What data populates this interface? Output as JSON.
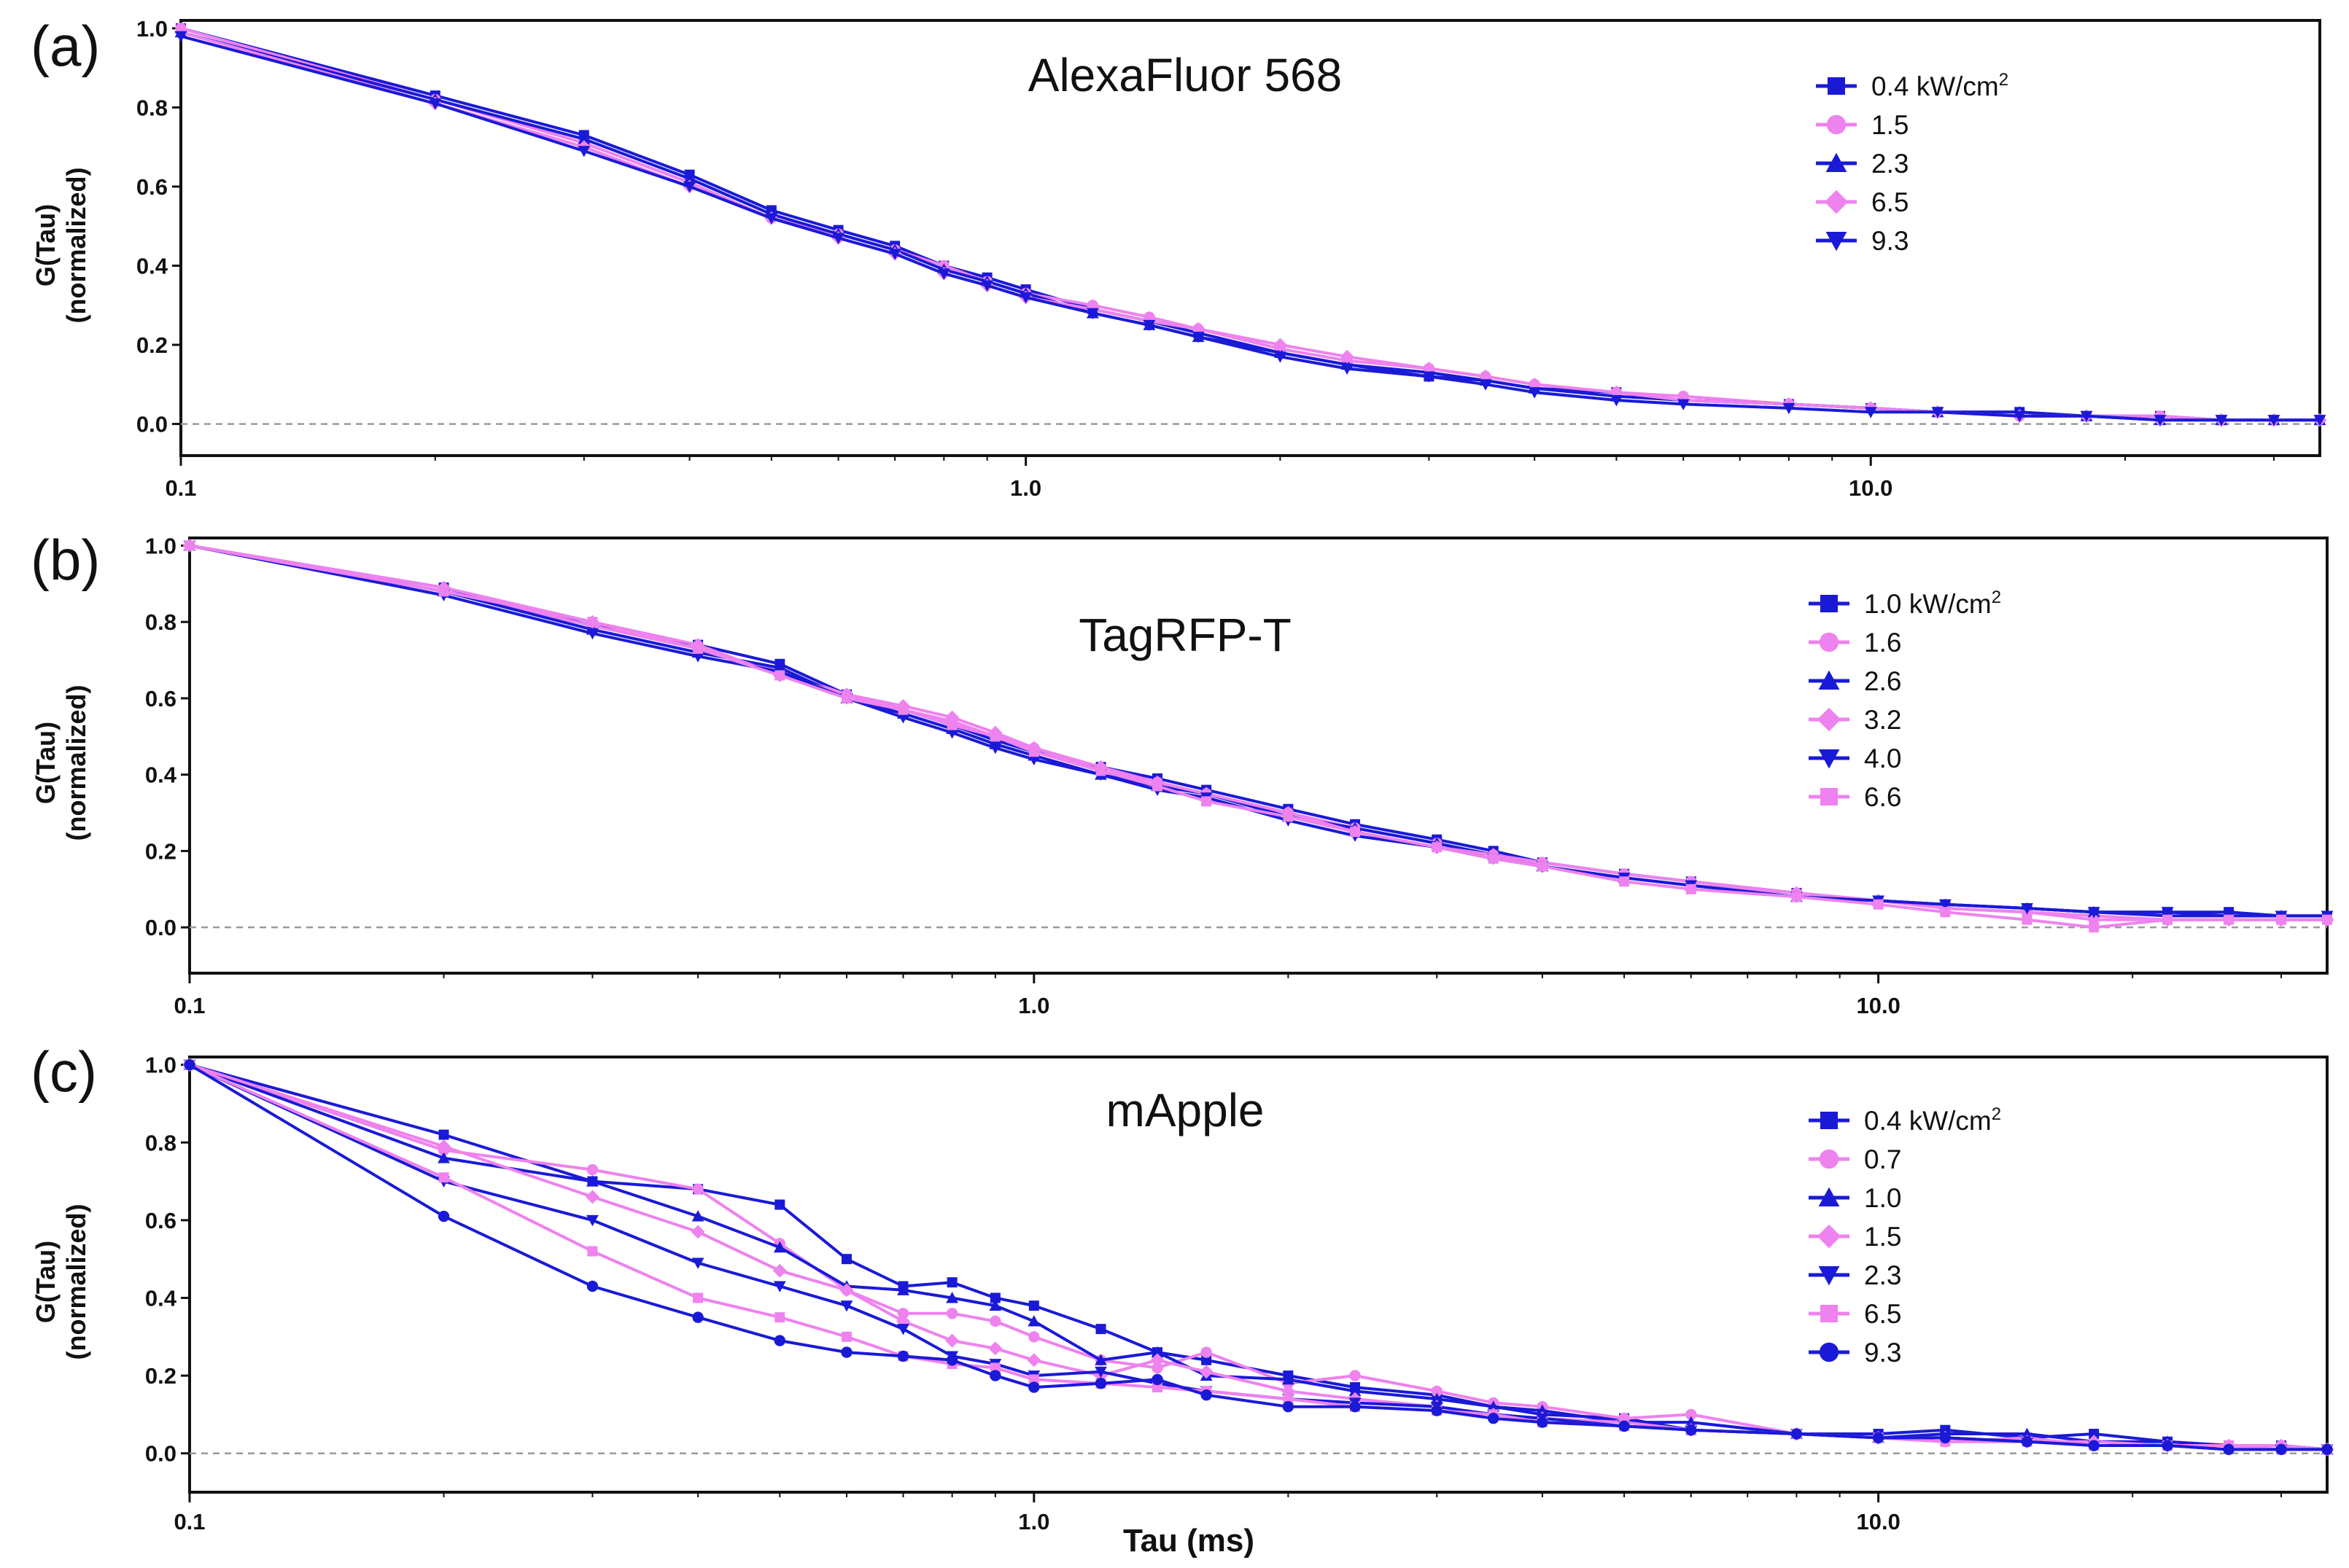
{
  "figure": {
    "shared_xlabel": "Tau (ms)",
    "colors": {
      "blue": "#1a1ad6",
      "pink": "#ee82ee",
      "axis": "#111111",
      "zero_line": "#9a9a9a"
    }
  },
  "chart_data": [
    {
      "type": "line",
      "panel_label": "(a)",
      "title": "AlexaFluor 568",
      "xlabel": "",
      "ylabel": [
        "G(Tau)",
        "(normalized)"
      ],
      "xscale": "log",
      "xlim": [
        0.1,
        34
      ],
      "ylim": [
        -0.08,
        1.02
      ],
      "xticks": [
        0.1,
        1.0,
        10.0
      ],
      "xtick_labels": [
        "0.1",
        "1.0",
        "10.0"
      ],
      "yticks": [
        0.0,
        0.2,
        0.4,
        0.6,
        0.8,
        1.0
      ],
      "ytick_labels": [
        "0.0",
        "0.2",
        "0.4",
        "0.6",
        "0.8",
        "1.0"
      ],
      "legend_position": "top-right",
      "legend_unit": "kW/cm",
      "legend_unit_sup": "2",
      "x": [
        0.1,
        0.2,
        0.3,
        0.4,
        0.5,
        0.6,
        0.7,
        0.8,
        0.9,
        1.0,
        1.2,
        1.4,
        1.6,
        2.0,
        2.4,
        3.0,
        3.5,
        4.0,
        5.0,
        6.0,
        8.0,
        10.0,
        12.0,
        15.0,
        18.0,
        22.0,
        26.0,
        30.0,
        34.0
      ],
      "series": [
        {
          "name": "0.4",
          "color": "#1a1ad6",
          "marker": "square",
          "values": [
            1.0,
            0.83,
            0.73,
            0.63,
            0.54,
            0.49,
            0.45,
            0.4,
            0.37,
            0.34,
            0.29,
            0.26,
            0.23,
            0.18,
            0.15,
            0.12,
            0.11,
            0.09,
            0.08,
            0.06,
            0.05,
            0.04,
            0.03,
            0.03,
            0.02,
            0.02,
            0.01,
            0.01,
            0.01
          ]
        },
        {
          "name": "1.5",
          "color": "#ee82ee",
          "marker": "circle",
          "values": [
            1.0,
            0.82,
            0.71,
            0.61,
            0.52,
            0.48,
            0.44,
            0.4,
            0.36,
            0.33,
            0.3,
            0.27,
            0.24,
            0.19,
            0.16,
            0.14,
            0.12,
            0.1,
            0.08,
            0.07,
            0.05,
            0.04,
            0.03,
            0.02,
            0.02,
            0.02,
            0.01,
            0.01,
            0.01
          ]
        },
        {
          "name": "2.3",
          "color": "#1a1ad6",
          "marker": "triangle-up",
          "values": [
            0.99,
            0.82,
            0.72,
            0.62,
            0.53,
            0.48,
            0.44,
            0.39,
            0.36,
            0.33,
            0.28,
            0.25,
            0.22,
            0.18,
            0.15,
            0.13,
            0.11,
            0.09,
            0.07,
            0.06,
            0.05,
            0.04,
            0.03,
            0.03,
            0.02,
            0.01,
            0.01,
            0.01,
            0.01
          ]
        },
        {
          "name": "6.5",
          "color": "#ee82ee",
          "marker": "diamond",
          "values": [
            0.99,
            0.81,
            0.7,
            0.6,
            0.52,
            0.47,
            0.43,
            0.38,
            0.35,
            0.32,
            0.29,
            0.26,
            0.24,
            0.2,
            0.17,
            0.14,
            0.12,
            0.1,
            0.08,
            0.06,
            0.05,
            0.04,
            0.03,
            0.02,
            0.02,
            0.01,
            0.01,
            0.01,
            0.01
          ]
        },
        {
          "name": "9.3",
          "color": "#1a1ad6",
          "marker": "triangle-down",
          "values": [
            0.98,
            0.81,
            0.69,
            0.6,
            0.52,
            0.47,
            0.43,
            0.38,
            0.35,
            0.32,
            0.28,
            0.25,
            0.22,
            0.17,
            0.14,
            0.12,
            0.1,
            0.08,
            0.06,
            0.05,
            0.04,
            0.03,
            0.03,
            0.02,
            0.02,
            0.01,
            0.01,
            0.01,
            0.01
          ]
        }
      ]
    },
    {
      "type": "line",
      "panel_label": "(b)",
      "title": "TagRFP-T",
      "xlabel": "",
      "ylabel": [
        "G(Tau)",
        "(normalized)"
      ],
      "xscale": "log",
      "xlim": [
        0.1,
        34
      ],
      "ylim": [
        -0.12,
        1.02
      ],
      "xticks": [
        0.1,
        1.0,
        10.0
      ],
      "xtick_labels": [
        "0.1",
        "1.0",
        "10.0"
      ],
      "yticks": [
        0.0,
        0.2,
        0.4,
        0.6,
        0.8,
        1.0
      ],
      "ytick_labels": [
        "0.0",
        "0.2",
        "0.4",
        "0.6",
        "0.8",
        "1.0"
      ],
      "legend_position": "top-right",
      "legend_unit": "kW/cm",
      "legend_unit_sup": "2",
      "x": [
        0.1,
        0.2,
        0.3,
        0.4,
        0.5,
        0.6,
        0.7,
        0.8,
        0.9,
        1.0,
        1.2,
        1.4,
        1.6,
        2.0,
        2.4,
        3.0,
        3.5,
        4.0,
        5.0,
        6.0,
        8.0,
        10.0,
        12.0,
        15.0,
        18.0,
        22.0,
        26.0,
        30.0,
        34.0
      ],
      "series": [
        {
          "name": "1.0",
          "color": "#1a1ad6",
          "marker": "square",
          "values": [
            1.0,
            0.89,
            0.79,
            0.74,
            0.69,
            0.61,
            0.57,
            0.53,
            0.49,
            0.46,
            0.42,
            0.39,
            0.36,
            0.31,
            0.27,
            0.23,
            0.2,
            0.17,
            0.14,
            0.12,
            0.09,
            0.07,
            0.06,
            0.05,
            0.04,
            0.04,
            0.04,
            0.03,
            0.03
          ]
        },
        {
          "name": "1.6",
          "color": "#ee82ee",
          "marker": "circle",
          "values": [
            1.0,
            0.88,
            0.79,
            0.73,
            0.67,
            0.61,
            0.57,
            0.54,
            0.5,
            0.47,
            0.41,
            0.38,
            0.35,
            0.3,
            0.26,
            0.22,
            0.19,
            0.17,
            0.14,
            0.12,
            0.09,
            0.07,
            0.05,
            0.04,
            0.03,
            0.02,
            0.02,
            0.02,
            0.02
          ]
        },
        {
          "name": "2.6",
          "color": "#1a1ad6",
          "marker": "triangle-up",
          "values": [
            1.0,
            0.88,
            0.78,
            0.72,
            0.68,
            0.6,
            0.56,
            0.52,
            0.48,
            0.45,
            0.4,
            0.37,
            0.35,
            0.29,
            0.26,
            0.22,
            0.19,
            0.16,
            0.13,
            0.11,
            0.08,
            0.07,
            0.06,
            0.05,
            0.04,
            0.03,
            0.03,
            0.03,
            0.03
          ]
        },
        {
          "name": "3.2",
          "color": "#ee82ee",
          "marker": "diamond",
          "values": [
            1.0,
            0.89,
            0.8,
            0.74,
            0.66,
            0.61,
            0.58,
            0.55,
            0.51,
            0.47,
            0.42,
            0.38,
            0.35,
            0.3,
            0.25,
            0.21,
            0.19,
            0.16,
            0.13,
            0.11,
            0.09,
            0.07,
            0.05,
            0.04,
            0.02,
            0.02,
            0.02,
            0.02,
            0.02
          ]
        },
        {
          "name": "4.0",
          "color": "#1a1ad6",
          "marker": "triangle-down",
          "values": [
            1.0,
            0.87,
            0.77,
            0.71,
            0.67,
            0.6,
            0.55,
            0.51,
            0.47,
            0.44,
            0.4,
            0.36,
            0.34,
            0.28,
            0.24,
            0.21,
            0.18,
            0.16,
            0.13,
            0.11,
            0.08,
            0.07,
            0.06,
            0.05,
            0.04,
            0.04,
            0.03,
            0.03,
            0.03
          ]
        },
        {
          "name": "6.6",
          "color": "#ee82ee",
          "marker": "square",
          "values": [
            1.0,
            0.88,
            0.8,
            0.73,
            0.66,
            0.6,
            0.57,
            0.53,
            0.5,
            0.46,
            0.41,
            0.37,
            0.33,
            0.29,
            0.25,
            0.21,
            0.18,
            0.16,
            0.12,
            0.1,
            0.08,
            0.06,
            0.04,
            0.02,
            0.0,
            0.02,
            0.02,
            0.02,
            0.02
          ]
        }
      ]
    },
    {
      "type": "line",
      "panel_label": "(c)",
      "title": "mApple",
      "xlabel": "Tau (ms)",
      "ylabel": [
        "G(Tau)",
        "(normalized)"
      ],
      "xscale": "log",
      "xlim": [
        0.1,
        34
      ],
      "ylim": [
        -0.1,
        1.02
      ],
      "xticks": [
        0.1,
        1.0,
        10.0
      ],
      "xtick_labels": [
        "0.1",
        "1.0",
        "10.0"
      ],
      "yticks": [
        0.0,
        0.2,
        0.4,
        0.6,
        0.8,
        1.0
      ],
      "ytick_labels": [
        "0.0",
        "0.2",
        "0.4",
        "0.6",
        "0.8",
        "1.0"
      ],
      "legend_position": "top-right",
      "legend_unit": "kW/cm",
      "legend_unit_sup": "2",
      "x": [
        0.1,
        0.2,
        0.3,
        0.4,
        0.5,
        0.6,
        0.7,
        0.8,
        0.9,
        1.0,
        1.2,
        1.4,
        1.6,
        2.0,
        2.4,
        3.0,
        3.5,
        4.0,
        5.0,
        6.0,
        8.0,
        10.0,
        12.0,
        15.0,
        18.0,
        22.0,
        26.0,
        30.0,
        34.0
      ],
      "series": [
        {
          "name": "0.4",
          "color": "#1a1ad6",
          "marker": "square",
          "values": [
            1.0,
            0.82,
            0.7,
            0.68,
            0.64,
            0.5,
            0.43,
            0.44,
            0.4,
            0.38,
            0.32,
            0.26,
            0.24,
            0.2,
            0.17,
            0.15,
            0.12,
            0.1,
            0.09,
            0.06,
            0.05,
            0.05,
            0.06,
            0.04,
            0.05,
            0.03,
            0.02,
            0.02,
            0.01
          ]
        },
        {
          "name": "0.7",
          "color": "#ee82ee",
          "marker": "circle",
          "values": [
            1.0,
            0.78,
            0.73,
            0.68,
            0.54,
            0.42,
            0.36,
            0.36,
            0.34,
            0.3,
            0.24,
            0.22,
            0.26,
            0.18,
            0.2,
            0.16,
            0.13,
            0.12,
            0.09,
            0.1,
            0.05,
            0.04,
            0.03,
            0.04,
            0.02,
            0.02,
            0.02,
            0.02,
            0.01
          ]
        },
        {
          "name": "1.0",
          "color": "#1a1ad6",
          "marker": "triangle-up",
          "values": [
            1.0,
            0.76,
            0.7,
            0.61,
            0.53,
            0.43,
            0.42,
            0.4,
            0.38,
            0.34,
            0.24,
            0.26,
            0.2,
            0.19,
            0.16,
            0.14,
            0.12,
            0.11,
            0.08,
            0.08,
            0.05,
            0.04,
            0.05,
            0.05,
            0.03,
            0.03,
            0.02,
            0.02,
            0.01
          ]
        },
        {
          "name": "1.5",
          "color": "#ee82ee",
          "marker": "diamond",
          "values": [
            1.0,
            0.79,
            0.66,
            0.57,
            0.47,
            0.42,
            0.34,
            0.29,
            0.27,
            0.24,
            0.2,
            0.24,
            0.21,
            0.16,
            0.14,
            0.12,
            0.1,
            0.09,
            0.08,
            0.06,
            0.05,
            0.04,
            0.04,
            0.03,
            0.03,
            0.02,
            0.02,
            0.02,
            0.01
          ]
        },
        {
          "name": "2.3",
          "color": "#1a1ad6",
          "marker": "triangle-down",
          "values": [
            1.0,
            0.7,
            0.6,
            0.49,
            0.43,
            0.38,
            0.32,
            0.25,
            0.23,
            0.2,
            0.21,
            0.18,
            0.16,
            0.14,
            0.13,
            0.12,
            0.1,
            0.09,
            0.07,
            0.06,
            0.05,
            0.04,
            0.04,
            0.03,
            0.02,
            0.02,
            0.01,
            0.01,
            0.01
          ]
        },
        {
          "name": "6.5",
          "color": "#ee82ee",
          "marker": "square",
          "values": [
            1.0,
            0.71,
            0.52,
            0.4,
            0.35,
            0.3,
            0.25,
            0.23,
            0.22,
            0.19,
            0.18,
            0.17,
            0.16,
            0.14,
            0.12,
            0.11,
            0.1,
            0.08,
            0.07,
            0.06,
            0.05,
            0.04,
            0.03,
            0.03,
            0.02,
            0.02,
            0.02,
            0.01,
            0.01
          ]
        },
        {
          "name": "9.3",
          "color": "#1a1ad6",
          "marker": "circle",
          "values": [
            1.0,
            0.61,
            0.43,
            0.35,
            0.29,
            0.26,
            0.25,
            0.24,
            0.2,
            0.17,
            0.18,
            0.19,
            0.15,
            0.12,
            0.12,
            0.11,
            0.09,
            0.08,
            0.07,
            0.06,
            0.05,
            0.04,
            0.04,
            0.03,
            0.02,
            0.02,
            0.01,
            0.01,
            0.01
          ]
        }
      ]
    }
  ]
}
